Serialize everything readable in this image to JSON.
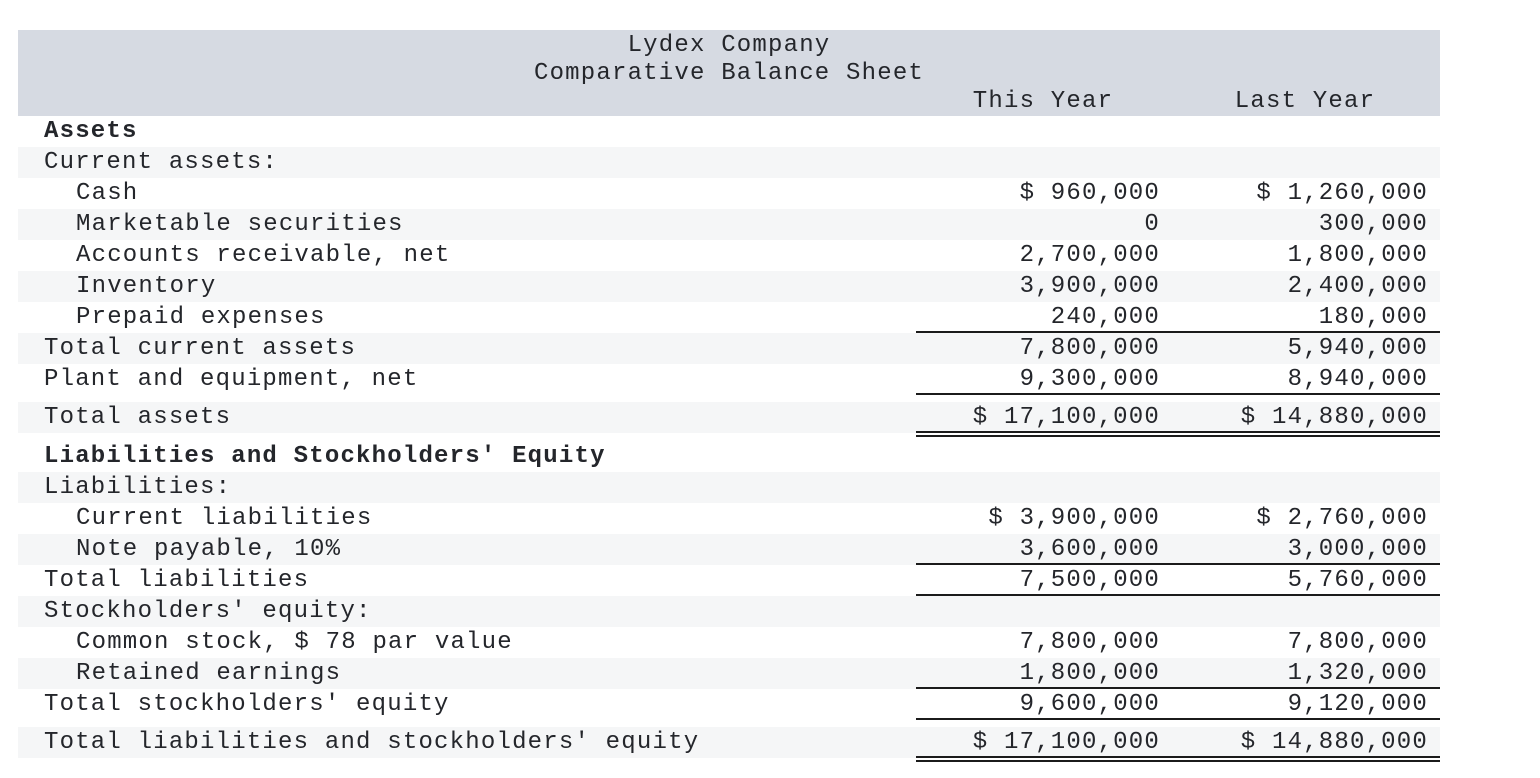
{
  "header": {
    "company": "Lydex Company",
    "statement": "Comparative Balance Sheet",
    "columns": {
      "this_year": "This Year",
      "last_year": "Last Year"
    }
  },
  "colors": {
    "header_band": "#d6dae2",
    "row_stripe": "#f5f6f7",
    "text": "#24262b",
    "rule": "#1b1b1b"
  },
  "rows": [
    {
      "label": "Assets",
      "this_year": "",
      "last_year": "",
      "indent": 0,
      "bold": true,
      "stripe": false,
      "rule": "none",
      "gap_before": 0
    },
    {
      "label": "Current assets:",
      "this_year": "",
      "last_year": "",
      "indent": 0,
      "bold": false,
      "stripe": true,
      "rule": "none",
      "gap_before": 0
    },
    {
      "label": "Cash",
      "this_year": "$ 960,000",
      "last_year": "$ 1,260,000",
      "indent": 1,
      "bold": false,
      "stripe": false,
      "rule": "none",
      "gap_before": 0
    },
    {
      "label": "Marketable securities",
      "this_year": "0",
      "last_year": "300,000",
      "indent": 1,
      "bold": false,
      "stripe": true,
      "rule": "none",
      "gap_before": 0
    },
    {
      "label": "Accounts receivable, net",
      "this_year": "2,700,000",
      "last_year": "1,800,000",
      "indent": 1,
      "bold": false,
      "stripe": false,
      "rule": "none",
      "gap_before": 0
    },
    {
      "label": "Inventory",
      "this_year": "3,900,000",
      "last_year": "2,400,000",
      "indent": 1,
      "bold": false,
      "stripe": true,
      "rule": "none",
      "gap_before": 0
    },
    {
      "label": "Prepaid expenses",
      "this_year": "240,000",
      "last_year": "180,000",
      "indent": 1,
      "bold": false,
      "stripe": false,
      "rule": "single",
      "gap_before": 0
    },
    {
      "label": "Total current assets",
      "this_year": "7,800,000",
      "last_year": "5,940,000",
      "indent": 0,
      "bold": false,
      "stripe": true,
      "rule": "none",
      "gap_before": 0
    },
    {
      "label": "Plant and equipment, net",
      "this_year": "9,300,000",
      "last_year": "8,940,000",
      "indent": 0,
      "bold": false,
      "stripe": false,
      "rule": "single",
      "gap_before": 0
    },
    {
      "label": "Total assets",
      "this_year": "$ 17,100,000",
      "last_year": "$ 14,880,000",
      "indent": 0,
      "bold": false,
      "stripe": true,
      "rule": "double",
      "gap_before": 7
    },
    {
      "label": "Liabilities and Stockholders' Equity",
      "this_year": "",
      "last_year": "",
      "indent": 0,
      "bold": true,
      "stripe": false,
      "rule": "none",
      "gap_before": 8
    },
    {
      "label": "Liabilities:",
      "this_year": "",
      "last_year": "",
      "indent": 0,
      "bold": false,
      "stripe": true,
      "rule": "none",
      "gap_before": 0
    },
    {
      "label": "Current liabilities",
      "this_year": "$ 3,900,000",
      "last_year": "$ 2,760,000",
      "indent": 1,
      "bold": false,
      "stripe": false,
      "rule": "none",
      "gap_before": 0
    },
    {
      "label": "Note payable, 10%",
      "this_year": "3,600,000",
      "last_year": "3,000,000",
      "indent": 1,
      "bold": false,
      "stripe": true,
      "rule": "single",
      "gap_before": 0
    },
    {
      "label": "Total liabilities",
      "this_year": "7,500,000",
      "last_year": "5,760,000",
      "indent": 0,
      "bold": false,
      "stripe": false,
      "rule": "single",
      "gap_before": 0
    },
    {
      "label": "Stockholders' equity:",
      "this_year": "",
      "last_year": "",
      "indent": 0,
      "bold": false,
      "stripe": true,
      "rule": "none",
      "gap_before": 0
    },
    {
      "label": "Common stock, $ 78 par value",
      "this_year": "7,800,000",
      "last_year": "7,800,000",
      "indent": 1,
      "bold": false,
      "stripe": false,
      "rule": "none",
      "gap_before": 0
    },
    {
      "label": "Retained earnings",
      "this_year": "1,800,000",
      "last_year": "1,320,000",
      "indent": 1,
      "bold": false,
      "stripe": true,
      "rule": "single",
      "gap_before": 0
    },
    {
      "label": "Total stockholders' equity",
      "this_year": "9,600,000",
      "last_year": "9,120,000",
      "indent": 0,
      "bold": false,
      "stripe": false,
      "rule": "single",
      "gap_before": 0
    },
    {
      "label": "Total liabilities and stockholders' equity",
      "this_year": "$ 17,100,000",
      "last_year": "$ 14,880,000",
      "indent": 0,
      "bold": false,
      "stripe": true,
      "rule": "double",
      "gap_before": 7
    }
  ]
}
